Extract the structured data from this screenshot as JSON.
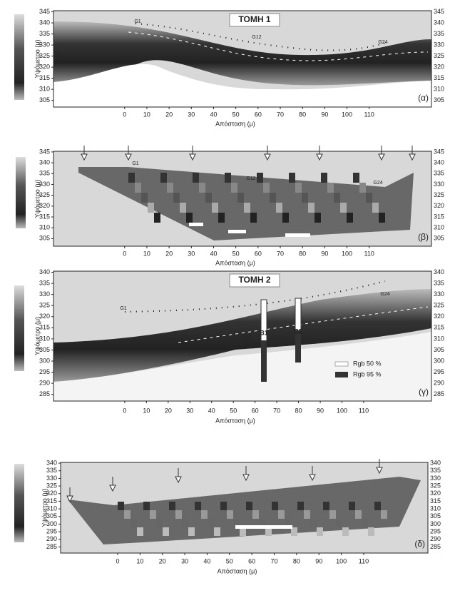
{
  "chart_data": [
    {
      "type": "section",
      "title": "ΤΟΜΗ 1",
      "panel_label": "(α)",
      "x_label": "Απόσταση (μ)",
      "y_label": "Υψόμετρο (μ)",
      "xlim": [
        -32,
        138
      ],
      "ylim": [
        302,
        345.5
      ],
      "xticks": [
        0,
        10,
        20,
        30,
        40,
        50,
        60,
        70,
        80,
        90,
        100,
        110
      ],
      "yticks": [
        305,
        310,
        315,
        320,
        325,
        330,
        335,
        340,
        345
      ],
      "annotations": [
        "G1",
        "G12",
        "G24"
      ]
    },
    {
      "type": "section",
      "panel_label": "(β)",
      "x_label": "Απόσταση (μ)",
      "y_label": "Υψόμετρο (μ)",
      "xlim": [
        -32,
        138
      ],
      "ylim": [
        301.5,
        345.3
      ],
      "xticks": [
        0,
        10,
        20,
        30,
        40,
        50,
        60,
        70,
        80,
        90,
        100,
        110
      ],
      "yticks": [
        305,
        310,
        315,
        320,
        325,
        330,
        335,
        340,
        345
      ],
      "annotations": [
        "G1",
        "G12",
        "G24"
      ]
    },
    {
      "type": "section",
      "title": "ΤΟΜΗ 2",
      "panel_label": "(γ)",
      "x_label": "Απόσταση (μ)",
      "y_label": "Υψόμετρο (μ)",
      "xlim": [
        -32.8,
        141.2
      ],
      "ylim": [
        282,
        340.5
      ],
      "xticks": [
        0,
        10,
        20,
        30,
        40,
        50,
        60,
        70,
        80,
        90,
        100,
        110
      ],
      "yticks": [
        285,
        290,
        295,
        300,
        305,
        310,
        315,
        320,
        325,
        330,
        335,
        340
      ],
      "annotations": [
        "G1",
        "G12",
        "B1",
        "B2",
        "G24"
      ],
      "legend": [
        "Rgb 50 %",
        "Rgb 95 %"
      ]
    },
    {
      "type": "section",
      "panel_label": "(δ)",
      "x_label": "Απόσταση (μ)",
      "y_label": "Υψόμετρο (μ)",
      "xlim": [
        -25.5,
        138.7
      ],
      "ylim": [
        281,
        340.5
      ],
      "xticks": [
        0,
        10,
        20,
        30,
        40,
        50,
        60,
        70,
        80,
        90,
        100,
        110
      ],
      "yticks": [
        285,
        290,
        295,
        300,
        305,
        310,
        315,
        320,
        325,
        330,
        335,
        340
      ],
      "annotations": []
    }
  ]
}
